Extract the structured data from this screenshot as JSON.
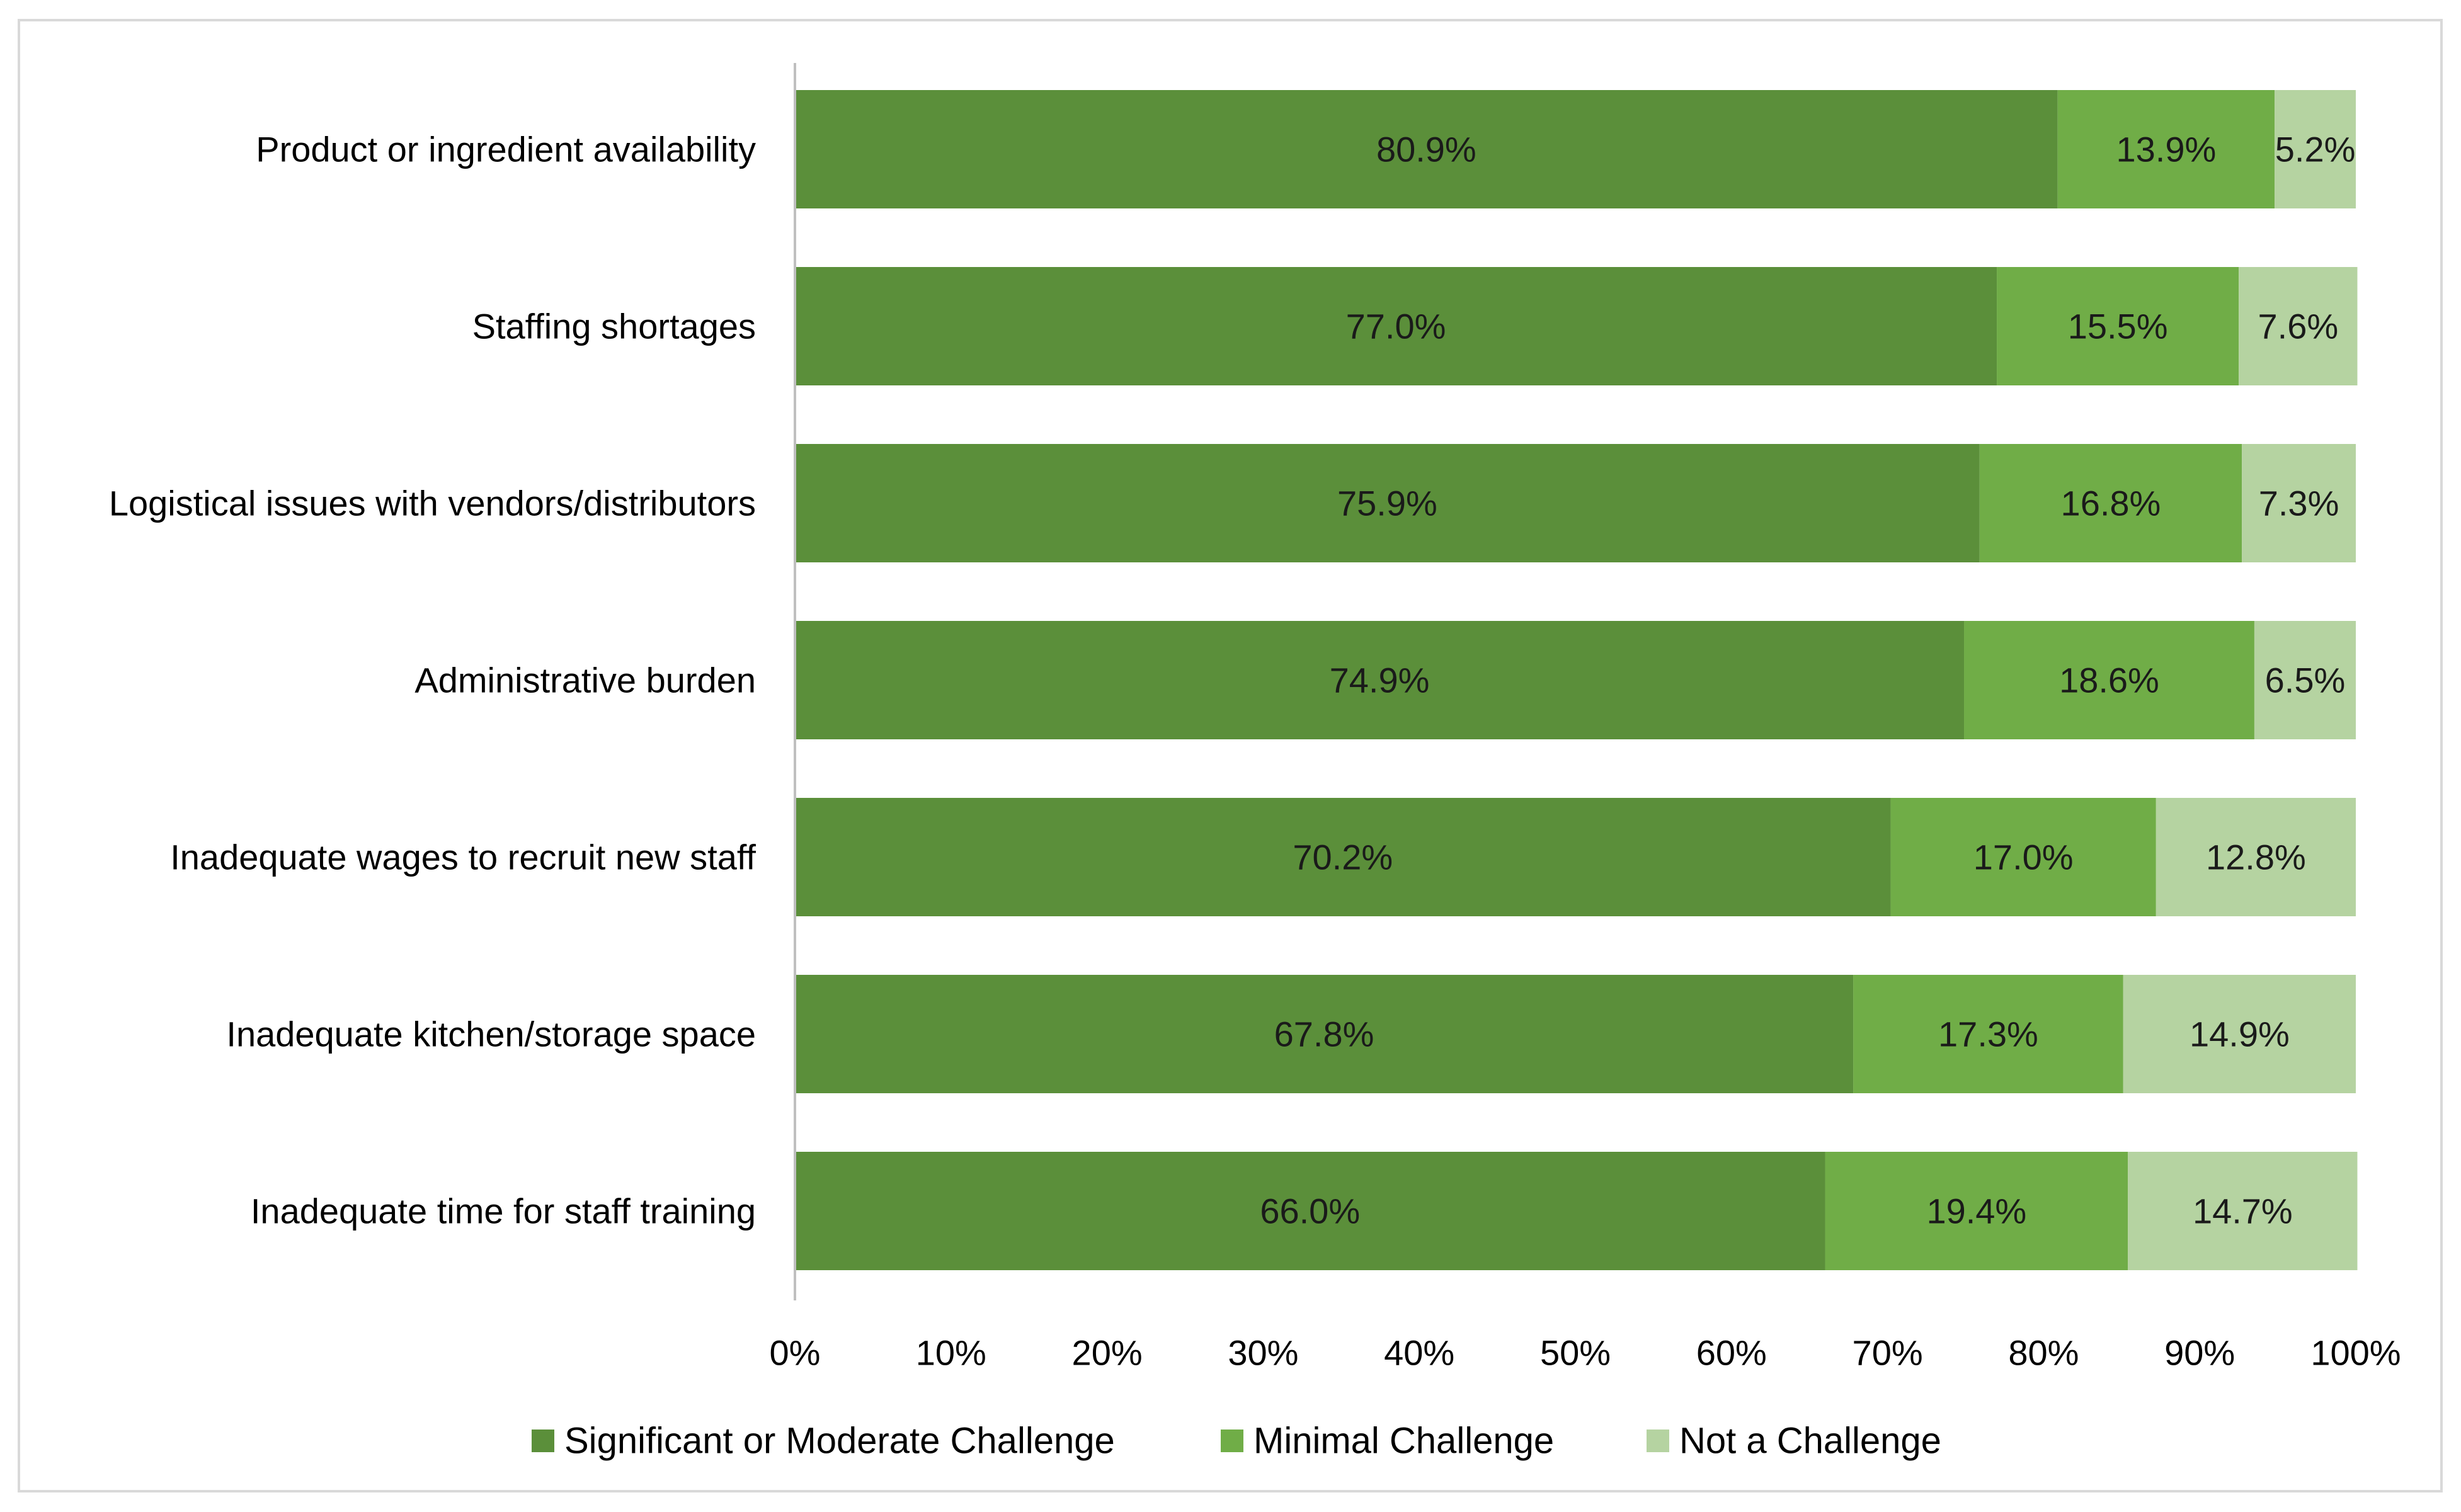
{
  "chart_data": {
    "type": "bar",
    "orientation": "horizontal",
    "stacked": true,
    "title": "",
    "xlabel": "",
    "ylabel": "",
    "xlim": [
      0,
      100
    ],
    "x_ticks": [
      "0%",
      "10%",
      "20%",
      "30%",
      "40%",
      "50%",
      "60%",
      "70%",
      "80%",
      "90%",
      "100%"
    ],
    "categories": [
      "Product or ingredient availability",
      "Staffing shortages",
      "Logistical issues with vendors/distributors",
      "Administrative burden",
      "Inadequate wages to recruit new staff",
      "Inadequate kitchen/storage space",
      "Inadequate time for staff training"
    ],
    "series": [
      {
        "name": "Significant or Moderate Challenge",
        "color": "#5b8f3a",
        "values": [
          80.9,
          77.0,
          75.9,
          74.9,
          70.2,
          67.8,
          66.0
        ],
        "labels": [
          "80.9%",
          "77.0%",
          "75.9%",
          "74.9%",
          "70.2%",
          "67.8%",
          "66.0%"
        ]
      },
      {
        "name": "Minimal Challenge",
        "color": "#70ad47",
        "values": [
          13.9,
          15.5,
          16.8,
          18.6,
          17.0,
          17.3,
          19.4
        ],
        "labels": [
          "13.9%",
          "15.5%",
          "16.8%",
          "18.6%",
          "17.0%",
          "17.3%",
          "19.4%"
        ]
      },
      {
        "name": "Not a Challenge",
        "color": "#b5d3a1",
        "values": [
          5.2,
          7.6,
          7.3,
          6.5,
          12.8,
          14.9,
          14.7
        ],
        "labels": [
          "5.2%",
          "7.6%",
          "7.3%",
          "6.5%",
          "12.8%",
          "14.9%",
          "14.7%"
        ]
      }
    ],
    "legend": {
      "position": "bottom"
    },
    "grid": false
  }
}
